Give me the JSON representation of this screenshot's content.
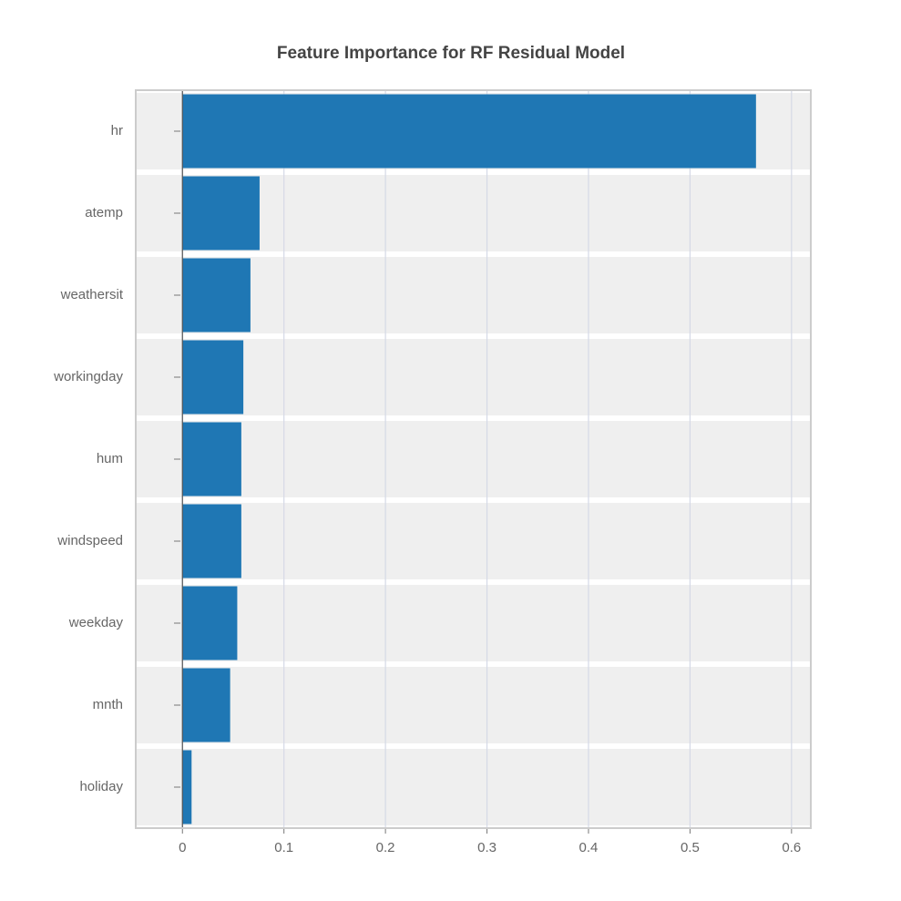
{
  "chart_data": {
    "type": "barh",
    "title": "Feature Importance for RF Residual Model",
    "categories": [
      "hr",
      "atemp",
      "weathersit",
      "workingday",
      "hum",
      "windspeed",
      "weekday",
      "mnth",
      "holiday"
    ],
    "values": [
      0.565,
      0.076,
      0.067,
      0.06,
      0.058,
      0.058,
      0.054,
      0.047,
      0.009
    ],
    "color": "#1f77b4",
    "xlim": [
      -0.046,
      0.619
    ],
    "xticks": [
      0,
      0.1,
      0.2,
      0.3,
      0.4,
      0.5,
      0.6
    ],
    "grid": true
  }
}
